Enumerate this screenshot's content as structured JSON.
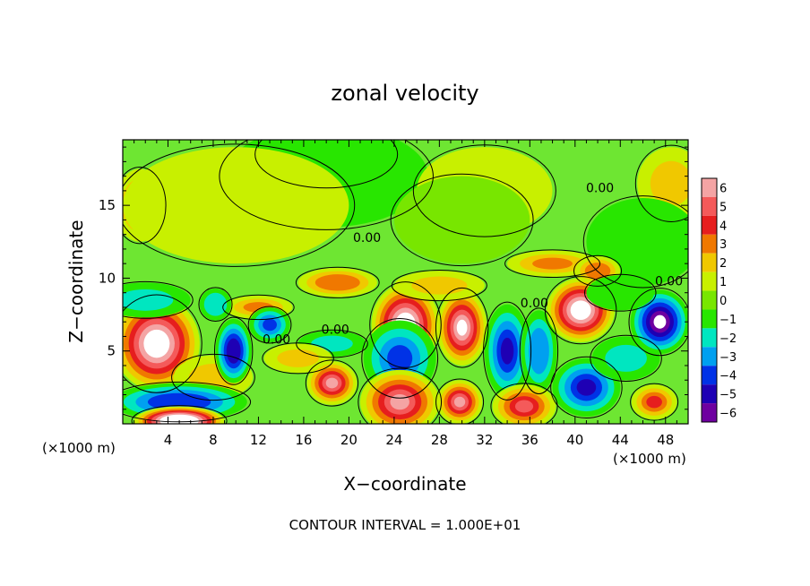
{
  "chart_data": {
    "type": "heatmap",
    "title": "zonal velocity",
    "xlabel": "X−coordinate",
    "ylabel": "Z−coordinate",
    "x_unit_left": "(×1000 m)",
    "x_unit_right": "(×1000 m)",
    "footer": "CONTOUR INTERVAL = 1.000E+01",
    "xlim": [
      0,
      50
    ],
    "ylim": [
      0,
      19.5
    ],
    "x_ticks": [
      4,
      8,
      12,
      16,
      20,
      24,
      28,
      32,
      36,
      40,
      44,
      48
    ],
    "x_tick_labels": [
      "4",
      "8",
      "12",
      "16",
      "20",
      "24",
      "28",
      "32",
      "36",
      "40",
      "44",
      "48"
    ],
    "y_ticks": [
      5,
      10,
      15
    ],
    "y_tick_labels": [
      "5",
      "10",
      "15"
    ],
    "contour_labels": [
      {
        "text": "0.00",
        "x": 42.2,
        "y": 16.2
      },
      {
        "text": "0.00",
        "x": 21.6,
        "y": 12.8
      },
      {
        "text": "0.00",
        "x": 48.3,
        "y": 9.8
      },
      {
        "text": "0.00",
        "x": 36.4,
        "y": 8.3
      },
      {
        "text": "0.00",
        "x": 18.8,
        "y": 6.5
      },
      {
        "text": "0.00",
        "x": 13.6,
        "y": 5.8
      }
    ],
    "colorbar": {
      "levels": [
        6,
        5,
        4,
        3,
        2,
        1,
        0,
        -1,
        -2,
        -3,
        -4,
        -5,
        -6
      ],
      "labels": [
        "6",
        "5",
        "4",
        "3",
        "2",
        "1",
        "0",
        "−1",
        "−2",
        "−3",
        "−4",
        "−5",
        "−6"
      ],
      "colors": [
        "#f4a4a4",
        "#f45a5a",
        "#e61e1e",
        "#f07800",
        "#f0c800",
        "#c8f000",
        "#78e600",
        "#28e600",
        "#00e6c0",
        "#00a0f0",
        "#0032e6",
        "#1e00b4",
        "#6e00a0"
      ]
    },
    "field_background": "#6ee632",
    "blobs": [
      {
        "x": 1.5,
        "y": 15.0,
        "rx": 2.2,
        "ry": 2.5,
        "v": 2.6
      },
      {
        "x": 48.5,
        "y": 16.5,
        "rx": 3.0,
        "ry": 2.5,
        "v": 2.0
      },
      {
        "x": 18.0,
        "y": 18.5,
        "rx": 6.0,
        "ry": 2.2,
        "v": -2.0
      },
      {
        "x": 18.0,
        "y": 17.0,
        "rx": 9.0,
        "ry": 3.5,
        "v": -1.0
      },
      {
        "x": 10.0,
        "y": 15.0,
        "rx": 10.0,
        "ry": 4.0,
        "v": 0.8
      },
      {
        "x": 32.0,
        "y": 16.0,
        "rx": 6.0,
        "ry": 3.0,
        "v": 0.8
      },
      {
        "x": 46.0,
        "y": 12.5,
        "rx": 5.0,
        "ry": 3.0,
        "v": -0.8
      },
      {
        "x": 30.0,
        "y": 14.0,
        "rx": 6.0,
        "ry": 3.0,
        "v": 0.3
      },
      {
        "x": 19.0,
        "y": 9.7,
        "rx": 3.5,
        "ry": 1.0,
        "v": 3.2
      },
      {
        "x": 12.0,
        "y": 8.0,
        "rx": 3.0,
        "ry": 0.8,
        "v": 3.0
      },
      {
        "x": 38.0,
        "y": 11.0,
        "rx": 4.0,
        "ry": 0.9,
        "v": 2.8
      },
      {
        "x": 42.0,
        "y": 10.5,
        "rx": 2.0,
        "ry": 1.0,
        "v": 3.2
      },
      {
        "x": 3.0,
        "y": 5.5,
        "rx": 3.8,
        "ry": 3.2,
        "v": 7.5
      },
      {
        "x": 8.0,
        "y": 3.2,
        "rx": 3.5,
        "ry": 1.5,
        "v": 2.0
      },
      {
        "x": 9.8,
        "y": 5.0,
        "rx": 1.6,
        "ry": 2.2,
        "v": -5.5
      },
      {
        "x": 8.2,
        "y": 8.2,
        "rx": 1.4,
        "ry": 1.1,
        "v": -2.5
      },
      {
        "x": 13.0,
        "y": 6.8,
        "rx": 1.8,
        "ry": 1.2,
        "v": -4.0
      },
      {
        "x": 18.5,
        "y": 5.5,
        "rx": 3.0,
        "ry": 0.9,
        "v": -2.0
      },
      {
        "x": 15.5,
        "y": 4.5,
        "rx": 3.0,
        "ry": 1.0,
        "v": 2.0
      },
      {
        "x": 18.5,
        "y": 2.8,
        "rx": 2.2,
        "ry": 1.5,
        "v": 6.0
      },
      {
        "x": 25.0,
        "y": 6.8,
        "rx": 3.0,
        "ry": 2.8,
        "v": 8.0
      },
      {
        "x": 24.5,
        "y": 4.5,
        "rx": 3.2,
        "ry": 2.6,
        "v": -4.0
      },
      {
        "x": 24.5,
        "y": 1.5,
        "rx": 3.5,
        "ry": 2.2,
        "v": 5.5
      },
      {
        "x": 30.0,
        "y": 6.6,
        "rx": 2.2,
        "ry": 2.6,
        "v": 6.5
      },
      {
        "x": 29.8,
        "y": 1.5,
        "rx": 2.0,
        "ry": 1.5,
        "v": 6.0
      },
      {
        "x": 34.0,
        "y": 5.0,
        "rx": 2.0,
        "ry": 3.2,
        "v": -5.0
      },
      {
        "x": 36.8,
        "y": 5.0,
        "rx": 1.6,
        "ry": 2.8,
        "v": -3.5
      },
      {
        "x": 35.5,
        "y": 1.2,
        "rx": 2.8,
        "ry": 1.5,
        "v": 4.5
      },
      {
        "x": 40.5,
        "y": 7.8,
        "rx": 3.0,
        "ry": 2.2,
        "v": 7.5
      },
      {
        "x": 41.0,
        "y": 2.5,
        "rx": 3.0,
        "ry": 2.0,
        "v": -5.0
      },
      {
        "x": 44.5,
        "y": 4.5,
        "rx": 3.0,
        "ry": 1.5,
        "v": -2.0
      },
      {
        "x": 47.5,
        "y": 7.0,
        "rx": 2.6,
        "ry": 2.2,
        "v": -6.5
      },
      {
        "x": 47.0,
        "y": 1.5,
        "rx": 2.0,
        "ry": 1.2,
        "v": 3.5
      },
      {
        "x": 5.0,
        "y": 1.5,
        "rx": 6.0,
        "ry": 1.3,
        "v": -4.5
      },
      {
        "x": 5.0,
        "y": 0.2,
        "rx": 4.0,
        "ry": 1.0,
        "v": 10.0
      },
      {
        "x": 2.0,
        "y": 8.5,
        "rx": 4.0,
        "ry": 1.2,
        "v": -2.0
      },
      {
        "x": 28.0,
        "y": 9.5,
        "rx": 4.0,
        "ry": 1.0,
        "v": 2.0
      },
      {
        "x": 44.0,
        "y": 9.0,
        "rx": 3.0,
        "ry": 1.2,
        "v": -1.5
      }
    ]
  }
}
